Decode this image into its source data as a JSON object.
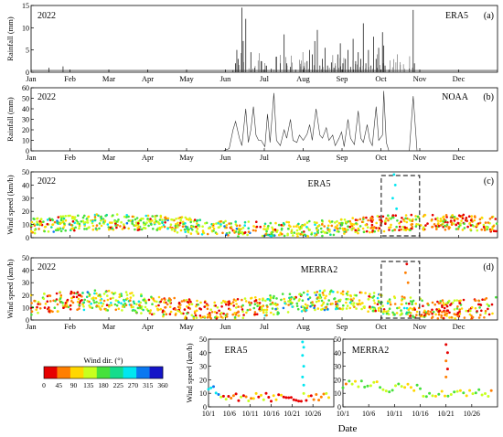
{
  "chart_data": [
    {
      "id": "a",
      "type": "bar",
      "panel_label": "(a)",
      "year_label": "2022",
      "source_label": "ERA5",
      "ylabel": "Rainfall (mm)",
      "ylim": [
        0,
        15
      ],
      "yticks": [
        0,
        5,
        10,
        15
      ],
      "x_ticks": [
        "Jan",
        "Feb",
        "Mar",
        "Apr",
        "May",
        "Jun",
        "Jul",
        "Aug",
        "Sep",
        "Oct",
        "Nov",
        "Dec"
      ],
      "series": [
        {
          "values": [
            [
              14,
              1.0
            ],
            [
              25,
              1.3
            ],
            [
              158,
              0.5
            ],
            [
              160,
              2.0
            ],
            [
              161,
              5.0
            ],
            [
              162,
              3.0
            ],
            [
              165,
              14.5
            ],
            [
              166,
              7.0
            ],
            [
              168,
              12.0
            ],
            [
              172,
              4.5
            ],
            [
              175,
              1.0
            ],
            [
              180,
              2.5
            ],
            [
              184,
              1.5
            ],
            [
              188,
              0.8
            ],
            [
              192,
              3.5
            ],
            [
              195,
              2.0
            ],
            [
              198,
              8.5
            ],
            [
              200,
              2.0
            ],
            [
              203,
              1.2
            ],
            [
              207,
              0.6
            ],
            [
              211,
              1.3
            ],
            [
              214,
              1.0
            ],
            [
              216,
              2.5
            ],
            [
              218,
              5.0
            ],
            [
              220,
              4.0
            ],
            [
              222,
              7.0
            ],
            [
              224,
              9.5
            ],
            [
              226,
              1.5
            ],
            [
              228,
              3.0
            ],
            [
              230,
              5.5
            ],
            [
              232,
              1.5
            ],
            [
              235,
              2.2
            ],
            [
              237,
              1.0
            ],
            [
              240,
              4.0
            ],
            [
              242,
              6.5
            ],
            [
              244,
              2.0
            ],
            [
              246,
              3.0
            ],
            [
              248,
              5.0
            ],
            [
              250,
              1.2
            ],
            [
              252,
              7.5
            ],
            [
              254,
              2.5
            ],
            [
              256,
              4.5
            ],
            [
              258,
              3.0
            ],
            [
              260,
              11.0
            ],
            [
              262,
              2.0
            ],
            [
              264,
              5.0
            ],
            [
              266,
              1.5
            ],
            [
              268,
              8.0
            ],
            [
              270,
              3.0
            ],
            [
              272,
              5.5
            ],
            [
              275,
              9.0
            ],
            [
              276,
              6.0
            ],
            [
              277,
              1.5
            ],
            [
              280,
              0.6
            ],
            [
              299,
              14.0
            ],
            [
              300,
              2.0
            ]
          ]
        }
      ]
    },
    {
      "id": "b",
      "type": "line",
      "panel_label": "(b)",
      "year_label": "2022",
      "source_label": "NOAA",
      "ylabel": "Rainfall (mm)",
      "ylim": [
        0,
        60
      ],
      "yticks": [
        0,
        10,
        20,
        30,
        40,
        50,
        60
      ],
      "x_ticks": [
        "Jan",
        "Feb",
        "Mar",
        "Apr",
        "May",
        "Jun",
        "Jul",
        "Aug",
        "Sep",
        "Oct",
        "Nov",
        "Dec"
      ],
      "series": [
        {
          "values": [
            [
              0,
              0
            ],
            [
              150,
              0
            ],
            [
              155,
              2
            ],
            [
              158,
              20
            ],
            [
              160,
              28
            ],
            [
              163,
              12
            ],
            [
              165,
              5
            ],
            [
              168,
              40
            ],
            [
              170,
              8
            ],
            [
              172,
              20
            ],
            [
              174,
              42
            ],
            [
              176,
              15
            ],
            [
              178,
              10
            ],
            [
              180,
              10
            ],
            [
              183,
              4
            ],
            [
              185,
              35
            ],
            [
              187,
              8
            ],
            [
              190,
              55
            ],
            [
              192,
              10
            ],
            [
              195,
              5
            ],
            [
              198,
              20
            ],
            [
              200,
              12
            ],
            [
              203,
              30
            ],
            [
              205,
              10
            ],
            [
              208,
              8
            ],
            [
              210,
              15
            ],
            [
              213,
              10
            ],
            [
              216,
              16
            ],
            [
              218,
              25
            ],
            [
              220,
              10
            ],
            [
              223,
              40
            ],
            [
              226,
              15
            ],
            [
              228,
              12
            ],
            [
              231,
              22
            ],
            [
              233,
              10
            ],
            [
              236,
              15
            ],
            [
              238,
              5
            ],
            [
              241,
              12
            ],
            [
              243,
              18
            ],
            [
              245,
              4
            ],
            [
              248,
              30
            ],
            [
              250,
              12
            ],
            [
              253,
              6
            ],
            [
              256,
              38
            ],
            [
              258,
              12
            ],
            [
              260,
              8
            ],
            [
              263,
              25
            ],
            [
              265,
              10
            ],
            [
              267,
              5
            ],
            [
              270,
              42
            ],
            [
              272,
              10
            ],
            [
              275,
              15
            ],
            [
              276,
              57
            ],
            [
              278,
              8
            ],
            [
              280,
              0
            ],
            [
              296,
              0
            ],
            [
              299,
              52
            ],
            [
              302,
              0
            ],
            [
              365,
              0
            ]
          ]
        }
      ]
    },
    {
      "id": "c",
      "type": "scatter",
      "panel_label": "(c)",
      "year_label": "2022",
      "source_label": "ERA5",
      "ylabel": "Wind speed (km/h)",
      "ylim": [
        0,
        50
      ],
      "yticks": [
        0,
        10,
        20,
        30,
        40,
        50
      ],
      "x_ticks": [
        "Jan",
        "Feb",
        "Mar",
        "Apr",
        "May",
        "Jun",
        "Jul",
        "Aug",
        "Sep",
        "Oct",
        "Nov",
        "Dec"
      ],
      "highlight": "Oct 1 – Oct 31"
    },
    {
      "id": "d",
      "type": "scatter",
      "panel_label": "(d)",
      "year_label": "2022",
      "source_label": "MERRA2",
      "ylabel": "Wind speed (km/h)",
      "ylim": [
        0,
        50
      ],
      "yticks": [
        0,
        10,
        20,
        30,
        40,
        50
      ],
      "x_ticks": [
        "Jan",
        "Feb",
        "Mar",
        "Apr",
        "May",
        "Jun",
        "Jul",
        "Aug",
        "Sep",
        "Oct",
        "Nov",
        "Dec"
      ],
      "highlight": "Oct 1 – Oct 31"
    },
    {
      "id": "e",
      "type": "scatter",
      "source_label": "ERA5",
      "ylabel": "Wind speed (km/h)",
      "ylim": [
        0,
        50
      ],
      "yticks": [
        0,
        10,
        20,
        30,
        40,
        50
      ],
      "x_ticks": [
        "10/1",
        "10/6",
        "10/11",
        "10/16",
        "10/21",
        "10/26"
      ]
    },
    {
      "id": "f",
      "type": "scatter",
      "source_label": "MERRA2",
      "ylim": [
        0,
        50
      ],
      "yticks": [
        0,
        10,
        20,
        30,
        40,
        50
      ],
      "x_ticks": [
        "10/1",
        "10/6",
        "10/11",
        "10/16",
        "10/21",
        "10/26"
      ]
    }
  ],
  "xlabel_bottom": "Date",
  "colorbar": {
    "title": "Wind dir. (°)",
    "ticks": [
      "0",
      "45",
      "90",
      "135",
      "180",
      "225",
      "270",
      "315",
      "360"
    ],
    "colors": [
      "#e60000",
      "#ff7f00",
      "#ffd700",
      "#c8ff1e",
      "#46e13c",
      "#14dc8c",
      "#00e6f0",
      "#0a78f0",
      "#1414c8"
    ]
  }
}
